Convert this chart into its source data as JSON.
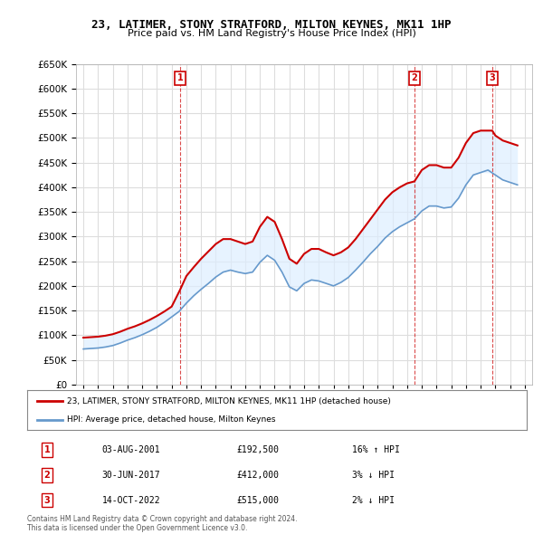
{
  "title": "23, LATIMER, STONY STRATFORD, MILTON KEYNES, MK11 1HP",
  "subtitle": "Price paid vs. HM Land Registry's House Price Index (HPI)",
  "legend_line1": "23, LATIMER, STONY STRATFORD, MILTON KEYNES, MK11 1HP (detached house)",
  "legend_line2": "HPI: Average price, detached house, Milton Keynes",
  "footer1": "Contains HM Land Registry data © Crown copyright and database right 2024.",
  "footer2": "This data is licensed under the Open Government Licence v3.0.",
  "transactions": [
    {
      "label": "1",
      "date": "03-AUG-2001",
      "price": "£192,500",
      "hpi": "16% ↑ HPI"
    },
    {
      "label": "2",
      "date": "30-JUN-2017",
      "price": "£412,000",
      "hpi": "3% ↓ HPI"
    },
    {
      "label": "3",
      "date": "14-OCT-2022",
      "price": "£515,000",
      "hpi": "2% ↓ HPI"
    }
  ],
  "transaction_years": [
    2001.58,
    2017.5,
    2022.79
  ],
  "transaction_prices": [
    192500,
    412000,
    515000
  ],
  "red_line_x": [
    1995,
    1995.5,
    1996,
    1996.5,
    1997,
    1997.5,
    1998,
    1998.5,
    1999,
    1999.5,
    2000,
    2000.5,
    2001,
    2001.58,
    2002,
    2002.5,
    2003,
    2003.5,
    2004,
    2004.5,
    2005,
    2005.5,
    2006,
    2006.5,
    2007,
    2007.5,
    2008,
    2008.5,
    2009,
    2009.5,
    2010,
    2010.5,
    2011,
    2011.5,
    2012,
    2012.5,
    2013,
    2013.5,
    2014,
    2014.5,
    2015,
    2015.5,
    2016,
    2016.5,
    2017,
    2017.5,
    2018,
    2018.5,
    2019,
    2019.5,
    2020,
    2020.5,
    2021,
    2021.5,
    2022,
    2022.79,
    2023,
    2023.5,
    2024,
    2024.5
  ],
  "red_line_y": [
    95000,
    96000,
    97000,
    99000,
    102000,
    107000,
    113000,
    118000,
    124000,
    131000,
    139000,
    148000,
    158000,
    192500,
    220000,
    238000,
    255000,
    270000,
    285000,
    295000,
    295000,
    290000,
    285000,
    290000,
    320000,
    340000,
    330000,
    295000,
    255000,
    245000,
    265000,
    275000,
    275000,
    268000,
    262000,
    268000,
    278000,
    295000,
    315000,
    335000,
    355000,
    375000,
    390000,
    400000,
    408000,
    412000,
    435000,
    445000,
    445000,
    440000,
    440000,
    460000,
    490000,
    510000,
    515000,
    515000,
    505000,
    495000,
    490000,
    485000
  ],
  "blue_line_x": [
    1995,
    1995.5,
    1996,
    1996.5,
    1997,
    1997.5,
    1998,
    1998.5,
    1999,
    1999.5,
    2000,
    2000.5,
    2001,
    2001.5,
    2002,
    2002.5,
    2003,
    2003.5,
    2004,
    2004.5,
    2005,
    2005.5,
    2006,
    2006.5,
    2007,
    2007.5,
    2008,
    2008.5,
    2009,
    2009.5,
    2010,
    2010.5,
    2011,
    2011.5,
    2012,
    2012.5,
    2013,
    2013.5,
    2014,
    2014.5,
    2015,
    2015.5,
    2016,
    2016.5,
    2017,
    2017.5,
    2018,
    2018.5,
    2019,
    2019.5,
    2020,
    2020.5,
    2021,
    2021.5,
    2022,
    2022.5,
    2023,
    2023.5,
    2024,
    2024.5
  ],
  "blue_line_y": [
    72000,
    73000,
    74000,
    76000,
    79000,
    84000,
    90000,
    95000,
    101000,
    108000,
    116000,
    126000,
    137000,
    148000,
    165000,
    180000,
    193000,
    205000,
    218000,
    228000,
    232000,
    228000,
    225000,
    228000,
    248000,
    262000,
    252000,
    228000,
    198000,
    190000,
    205000,
    212000,
    210000,
    205000,
    200000,
    207000,
    217000,
    232000,
    248000,
    265000,
    280000,
    297000,
    310000,
    320000,
    328000,
    336000,
    352000,
    362000,
    362000,
    358000,
    360000,
    378000,
    405000,
    425000,
    430000,
    435000,
    425000,
    415000,
    410000,
    405000
  ],
  "ylim": [
    0,
    650000
  ],
  "xlim": [
    1994.5,
    2025.5
  ],
  "red_color": "#cc0000",
  "blue_color": "#6699cc",
  "background_color": "#ffffff",
  "grid_color": "#dddddd",
  "shade_color": "#ddeeff"
}
